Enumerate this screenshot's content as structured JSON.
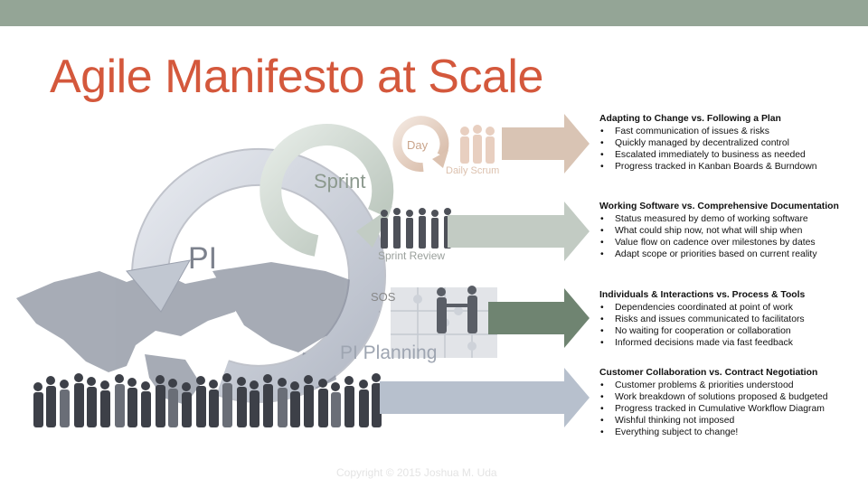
{
  "slide": {
    "title": "Agile Manifesto at Scale",
    "copyright": "Copyright © 2015 Joshua M. Uda"
  },
  "diagram": {
    "labels": {
      "pi": "PI",
      "sprint": "Sprint",
      "day": "Day",
      "daily_scrum": "Daily Scrum",
      "sprint_review": "Sprint Review",
      "sos": "SOS",
      "pi_planning": "PI Planning"
    }
  },
  "sections": [
    {
      "heading": "Adapting to Change vs. Following a Plan",
      "arrow_color": "#d9c4b4",
      "bullets": [
        "Fast communication of issues & risks",
        "Quickly managed by decentralized control",
        "Escalated immediately to business as needed",
        "Progress tracked in Kanban Boards & Burndown"
      ]
    },
    {
      "heading": "Working Software vs. Comprehensive Documentation",
      "arrow_color": "#c2cbc3",
      "bullets": [
        "Status measured by demo of working software",
        "What could ship now, not what will ship when",
        "Value flow on cadence over milestones by dates",
        "Adapt scope or priorities based on current reality"
      ]
    },
    {
      "heading": "Individuals & Interactions vs. Process & Tools",
      "arrow_color": "#6f8471",
      "bullets": [
        "Dependencies coordinated at point of work",
        "Risks and issues communicated to facilitators",
        "No waiting for cooperation or collaboration",
        "Informed decisions made via fast feedback"
      ]
    },
    {
      "heading": "Customer Collaboration vs. Contract Negotiation",
      "arrow_color": "#b7c0cd",
      "bullets": [
        "Customer problems & priorities understood",
        "Work breakdown of solutions proposed & budgeted",
        "Progress tracked in Cumulative Workflow Diagram",
        "Wishful thinking not imposed",
        "Everything subject to change!"
      ]
    }
  ]
}
